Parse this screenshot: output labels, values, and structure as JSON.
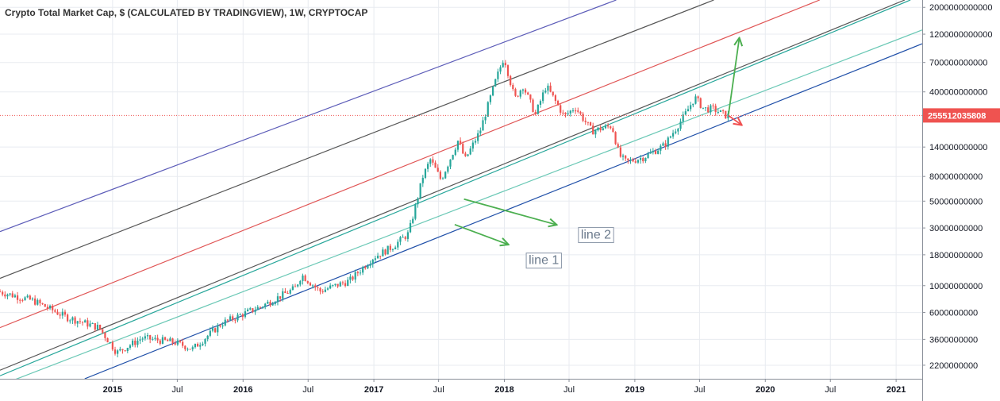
{
  "chart_data": {
    "type": "candlestick",
    "title": "Crypto Total Market Cap, $ (CALCULATED BY TRADINGVIEW), 1W, CRYPTOCAP",
    "y_scale": "log",
    "y_tick_labels": [
      "2000000000000",
      "1200000000000",
      "700000000000",
      "400000000000",
      "255512035808",
      "140000000000",
      "80000000000",
      "50000000000",
      "30000000000",
      "18000000000",
      "10000000000",
      "6000000000",
      "3600000000",
      "2200000000"
    ],
    "y_ticks": [
      2000000000000,
      1200000000000,
      700000000000,
      400000000000,
      140000000000,
      80000000000,
      50000000000,
      30000000000,
      18000000000,
      10000000000,
      6000000000,
      3600000000,
      2200000000
    ],
    "ylim": [
      1700000000,
      2300000000000
    ],
    "x_tick_labels": [
      "2015",
      "Jul",
      "2016",
      "Jul",
      "2017",
      "Jul",
      "2018",
      "Jul",
      "2019",
      "Jul",
      "2020",
      "Jul",
      "2021"
    ],
    "x_ticks": [
      "2015-01-01",
      "2015-07-01",
      "2016-01-01",
      "2016-07-01",
      "2017-01-01",
      "2017-07-01",
      "2018-01-01",
      "2018-07-01",
      "2019-01-01",
      "2019-07-01",
      "2020-01-01",
      "2020-07-01",
      "2021-01-01"
    ],
    "xlim": [
      "2014-02-20",
      "2021-03-15"
    ],
    "current_price": {
      "value": 255512035808,
      "label": "255512035808",
      "color": "#ef5350"
    },
    "up_color": "#26a69a",
    "down_color": "#ef5350",
    "anchors": [
      {
        "date": "2014-02-20",
        "value": 9000000000
      },
      {
        "date": "2014-06-01",
        "value": 7500000000
      },
      {
        "date": "2014-09-01",
        "value": 5500000000
      },
      {
        "date": "2014-12-01",
        "value": 4500000000
      },
      {
        "date": "2015-01-20",
        "value": 2800000000
      },
      {
        "date": "2015-04-01",
        "value": 3700000000
      },
      {
        "date": "2015-07-01",
        "value": 3400000000
      },
      {
        "date": "2015-08-20",
        "value": 3000000000
      },
      {
        "date": "2015-11-10",
        "value": 4900000000
      },
      {
        "date": "2016-03-01",
        "value": 6800000000
      },
      {
        "date": "2016-06-01",
        "value": 9500000000
      },
      {
        "date": "2016-06-20",
        "value": 12300000000
      },
      {
        "date": "2016-08-10",
        "value": 9000000000
      },
      {
        "date": "2016-11-01",
        "value": 11000000000
      },
      {
        "date": "2017-01-05",
        "value": 17000000000
      },
      {
        "date": "2017-03-01",
        "value": 21000000000
      },
      {
        "date": "2017-04-15",
        "value": 27000000000
      },
      {
        "date": "2017-05-25",
        "value": 80000000000
      },
      {
        "date": "2017-06-15",
        "value": 110000000000
      },
      {
        "date": "2017-07-15",
        "value": 75000000000
      },
      {
        "date": "2017-09-01",
        "value": 160000000000
      },
      {
        "date": "2017-09-20",
        "value": 110000000000
      },
      {
        "date": "2017-11-01",
        "value": 190000000000
      },
      {
        "date": "2017-12-15",
        "value": 500000000000
      },
      {
        "date": "2018-01-07",
        "value": 780000000000
      },
      {
        "date": "2018-02-06",
        "value": 350000000000
      },
      {
        "date": "2018-03-01",
        "value": 450000000000
      },
      {
        "date": "2018-04-05",
        "value": 260000000000
      },
      {
        "date": "2018-05-05",
        "value": 450000000000
      },
      {
        "date": "2018-06-25",
        "value": 250000000000
      },
      {
        "date": "2018-07-25",
        "value": 300000000000
      },
      {
        "date": "2018-09-10",
        "value": 190000000000
      },
      {
        "date": "2018-11-05",
        "value": 210000000000
      },
      {
        "date": "2018-11-25",
        "value": 120000000000
      },
      {
        "date": "2018-12-15",
        "value": 105000000000
      },
      {
        "date": "2019-02-01",
        "value": 115000000000
      },
      {
        "date": "2019-04-01",
        "value": 145000000000
      },
      {
        "date": "2019-05-25",
        "value": 250000000000
      },
      {
        "date": "2019-06-25",
        "value": 360000000000
      },
      {
        "date": "2019-07-20",
        "value": 290000000000
      },
      {
        "date": "2019-08-15",
        "value": 290000000000
      },
      {
        "date": "2019-09-20",
        "value": 255000000000
      }
    ],
    "channel_lines": [
      {
        "color": "#5c5cb8",
        "points": [
          {
            "date": "2014-02-20",
            "value": 28000000000
          },
          {
            "date": "2018-11-10",
            "value": 2300000000000
          }
        ]
      },
      {
        "color": "#555555",
        "points": [
          {
            "date": "2014-02-20",
            "value": 11500000000
          },
          {
            "date": "2019-08-10",
            "value": 2300000000000
          }
        ]
      },
      {
        "color": "#e05454",
        "points": [
          {
            "date": "2014-02-20",
            "value": 4500000000
          },
          {
            "date": "2020-06-01",
            "value": 2300000000000
          }
        ]
      },
      {
        "color": "#555555",
        "points": [
          {
            "date": "2014-02-20",
            "value": 2000000000
          },
          {
            "date": "2021-01-25",
            "value": 2300000000000
          }
        ]
      },
      {
        "color": "#26a69a",
        "points": [
          {
            "date": "2014-02-20",
            "value": 1800000000
          },
          {
            "date": "2021-02-10",
            "value": 2300000000000
          }
        ]
      },
      {
        "color": "#6ac8b5",
        "points": [
          {
            "date": "2014-02-20",
            "value": 1500000000
          },
          {
            "date": "2021-03-15",
            "value": 1300000000000
          }
        ]
      },
      {
        "color": "#1f4fa8",
        "points": [
          {
            "date": "2014-10-15",
            "value": 1700000000
          },
          {
            "date": "2021-03-15",
            "value": 1000000000000
          }
        ]
      }
    ],
    "arrows": [
      {
        "color": "#4caf50",
        "from": {
          "date": "2019-09-20",
          "value": 260000000000
        },
        "to": {
          "date": "2019-10-20",
          "value": 1100000000000
        }
      },
      {
        "color": "#f05050",
        "from": {
          "date": "2019-09-20",
          "value": 255000000000
        },
        "to": {
          "date": "2019-10-25",
          "value": 215000000000
        }
      },
      {
        "color": "#4caf50",
        "from": {
          "date": "2017-09-10",
          "value": 52000000000
        },
        "to": {
          "date": "2018-05-25",
          "value": 32000000000
        }
      },
      {
        "color": "#4caf50",
        "from": {
          "date": "2017-08-15",
          "value": 32000000000
        },
        "to": {
          "date": "2018-01-10",
          "value": 22000000000
        }
      }
    ],
    "annotations": [
      {
        "text": "line 2",
        "date": "2018-07-25",
        "value": 26000000000
      },
      {
        "text": "line 1",
        "date": "2018-03-01",
        "value": 16000000000
      }
    ]
  }
}
